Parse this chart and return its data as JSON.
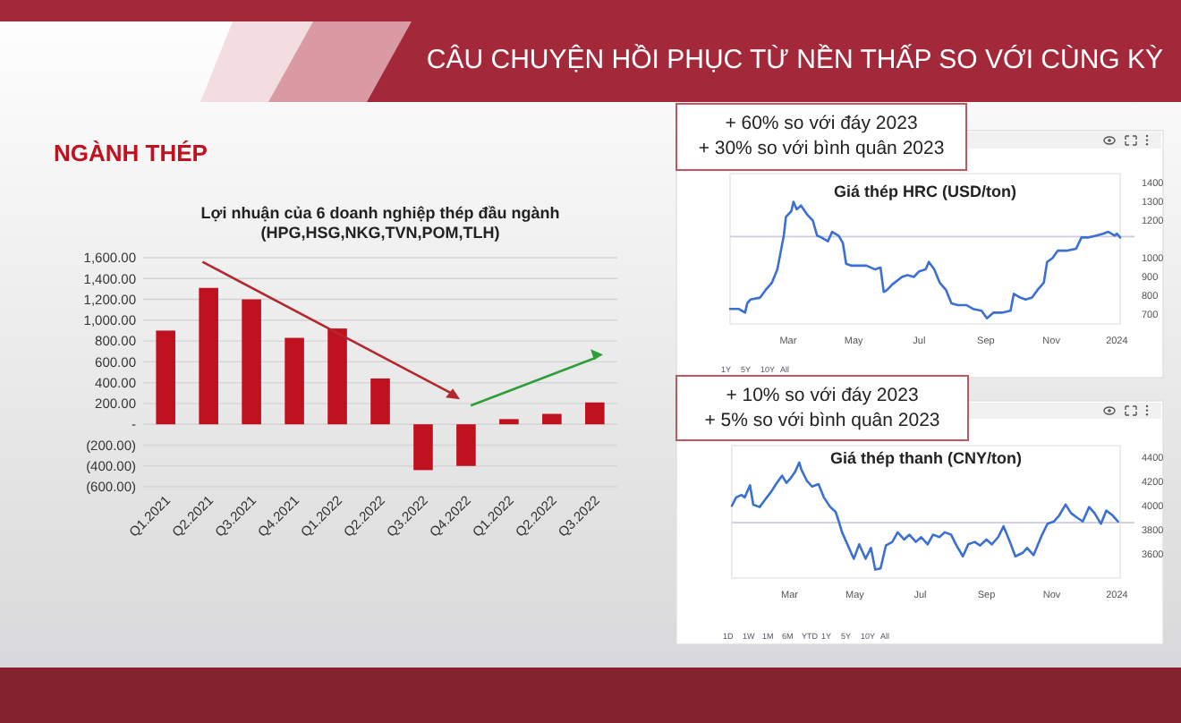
{
  "chart_data": [
    {
      "type": "bar",
      "title": "Lợi nhuận của 6 doanh nghiệp thép đầu ngành\n(HPG,HSG,NKG,TVN,POM,TLH)",
      "annotations": [
        "CÂU CHUYỆN HỒI PHỤC TỪ NỀN THẤP SO VỚI CÙNG KỲ",
        "NGÀNH THÉP"
      ],
      "categories": [
        "Q1.2021",
        "Q2.2021",
        "Q3.2021",
        "Q4.2021",
        "Q1.2022",
        "Q2.2022",
        "Q3.2022",
        "Q4.2022",
        "Q1.2022",
        "Q2.2022",
        "Q3.2022"
      ],
      "values": [
        900,
        1310,
        1200,
        830,
        920,
        440,
        -440,
        -400,
        50,
        100,
        210
      ],
      "color": "#c0111f",
      "ylim": [
        -600,
        1600
      ],
      "yticks": [
        {
          "value": -600,
          "label": "(600.00)"
        },
        {
          "value": -400,
          "label": "(400.00)"
        },
        {
          "value": -200,
          "label": "(200.00)"
        },
        {
          "value": 0,
          "label": "-"
        },
        {
          "value": 200,
          "label": "200.00"
        },
        {
          "value": 400,
          "label": "400.00"
        },
        {
          "value": 600,
          "label": "600.00"
        },
        {
          "value": 800,
          "label": "800.00"
        },
        {
          "value": 1000,
          "label": "1,000.00"
        },
        {
          "value": 1200,
          "label": "1,200.00"
        },
        {
          "value": 1400,
          "label": "1,400.00"
        },
        {
          "value": 1600,
          "label": "1,600.00"
        }
      ],
      "grid": "y"
    },
    {
      "type": "line",
      "title": "Giá thép HRC (USD/ton)",
      "annotations": [
        "+ 60% so với đáy 2023",
        "+ 30% so với bình quân 2023",
        "1Y",
        "5Y",
        "10Y",
        "All"
      ],
      "x": [
        "2023-01-06",
        "2023-01-14",
        "2023-01-20",
        "2023-01-22",
        "2023-01-25",
        "2023-02-03",
        "2023-02-08",
        "2023-02-14",
        "2023-02-19",
        "2023-02-25",
        "2023-02-27",
        "2023-03-04",
        "2023-03-06",
        "2023-03-09",
        "2023-03-13",
        "2023-03-19",
        "2023-03-24",
        "2023-03-28",
        "2023-04-01",
        "2023-04-07",
        "2023-04-11",
        "2023-04-17",
        "2023-04-21",
        "2023-04-24",
        "2023-04-29",
        "2023-05-04",
        "2023-05-13",
        "2023-05-21",
        "2023-05-26",
        "2023-05-29",
        "2023-06-01",
        "2023-06-06",
        "2023-06-15",
        "2023-06-20",
        "2023-06-26",
        "2023-07-01",
        "2023-07-07",
        "2023-07-10",
        "2023-07-15",
        "2023-07-20",
        "2023-07-26",
        "2023-07-31",
        "2023-08-06",
        "2023-08-14",
        "2023-08-20",
        "2023-08-28",
        "2023-09-02",
        "2023-09-08",
        "2023-09-16",
        "2023-09-24",
        "2023-09-27",
        "2023-10-03",
        "2023-10-08",
        "2023-10-14",
        "2023-10-19",
        "2023-10-25",
        "2023-10-28",
        "2023-11-02",
        "2023-11-07",
        "2023-11-16",
        "2023-11-24",
        "2023-11-29",
        "2023-12-05",
        "2023-12-13",
        "2023-12-19",
        "2023-12-24",
        "2023-12-30",
        "2024-01-01",
        "2024-01-04"
      ],
      "series": [
        {
          "color": "#3b6fd0",
          "values": [
            730,
            730,
            710,
            760,
            780,
            790,
            830,
            870,
            940,
            1120,
            1220,
            1250,
            1300,
            1260,
            1280,
            1230,
            1200,
            1120,
            1110,
            1090,
            1140,
            1120,
            1080,
            970,
            960,
            960,
            960,
            940,
            950,
            820,
            830,
            860,
            900,
            910,
            900,
            930,
            940,
            980,
            940,
            870,
            830,
            760,
            750,
            750,
            730,
            720,
            680,
            710,
            710,
            720,
            810,
            790,
            780,
            790,
            830,
            870,
            980,
            1000,
            1040,
            1040,
            1050,
            1110,
            1110,
            1120,
            1130,
            1140,
            1120,
            1130,
            1110
          ]
        }
      ],
      "xlim": [
        "2023-01-06",
        "2024-01-04"
      ],
      "xticks": [
        {
          "value": "2023-03-01",
          "label": "Mar"
        },
        {
          "value": "2023-05-01",
          "label": "May"
        },
        {
          "value": "2023-07-01",
          "label": "Jul"
        },
        {
          "value": "2023-09-01",
          "label": "Sep"
        },
        {
          "value": "2023-11-01",
          "label": "Nov"
        },
        {
          "value": "2024-01-01",
          "label": "2024"
        }
      ],
      "ylim": [
        650,
        1450
      ],
      "yticks": [
        700,
        800,
        900,
        1000,
        1200,
        1300,
        1400
      ],
      "ref_lines": [
        {
          "axis": "y",
          "value": 1115,
          "color": "#c9cbe0"
        }
      ]
    },
    {
      "type": "line",
      "title": "Giá thép thanh (CNY/ton)",
      "annotations": [
        "+ 10% so với đáy 2023",
        "+ 5% so với bình quân 2023",
        "1D",
        "1W",
        "1M",
        "6M",
        "YTD",
        "1Y",
        "5Y",
        "10Y",
        "All"
      ],
      "x": [
        "2023-01-06",
        "2023-01-10",
        "2023-01-15",
        "2023-01-18",
        "2023-01-23",
        "2023-01-26",
        "2023-02-01",
        "2023-02-06",
        "2023-02-12",
        "2023-02-17",
        "2023-02-22",
        "2023-02-26",
        "2023-03-02",
        "2023-03-06",
        "2023-03-10",
        "2023-03-12",
        "2023-03-17",
        "2023-03-22",
        "2023-03-28",
        "2023-04-02",
        "2023-04-08",
        "2023-04-13",
        "2023-04-16",
        "2023-04-19",
        "2023-04-24",
        "2023-04-30",
        "2023-05-05",
        "2023-05-11",
        "2023-05-16",
        "2023-05-20",
        "2023-05-25",
        "2023-05-30",
        "2023-06-05",
        "2023-06-10",
        "2023-06-16",
        "2023-06-21",
        "2023-06-27",
        "2023-07-02",
        "2023-07-08",
        "2023-07-13",
        "2023-07-19",
        "2023-07-24",
        "2023-07-30",
        "2023-08-04",
        "2023-08-10",
        "2023-08-15",
        "2023-08-21",
        "2023-08-26",
        "2023-09-01",
        "2023-09-06",
        "2023-09-12",
        "2023-09-17",
        "2023-09-23",
        "2023-09-28",
        "2023-10-05",
        "2023-10-09",
        "2023-10-15",
        "2023-10-23",
        "2023-10-28",
        "2023-11-03",
        "2023-11-08",
        "2023-11-14",
        "2023-11-19",
        "2023-11-25",
        "2023-11-30",
        "2023-12-06",
        "2023-12-11",
        "2023-12-17",
        "2023-12-22",
        "2023-12-28",
        "2024-01-02"
      ],
      "series": [
        {
          "color": "#3b6fd0",
          "values": [
            4000,
            4070,
            4090,
            4070,
            4170,
            4010,
            3990,
            4050,
            4120,
            4190,
            4250,
            4190,
            4230,
            4280,
            4360,
            4300,
            4210,
            4160,
            4180,
            4070,
            3990,
            3950,
            3870,
            3780,
            3680,
            3560,
            3680,
            3560,
            3650,
            3470,
            3480,
            3670,
            3700,
            3780,
            3720,
            3760,
            3700,
            3740,
            3680,
            3760,
            3740,
            3780,
            3760,
            3670,
            3580,
            3680,
            3700,
            3670,
            3720,
            3680,
            3740,
            3830,
            3700,
            3580,
            3610,
            3650,
            3590,
            3760,
            3850,
            3870,
            3920,
            4010,
            3940,
            3900,
            3870,
            3990,
            3940,
            3850,
            3960,
            3920,
            3870
          ]
        }
      ],
      "xlim": [
        "2023-01-06",
        "2024-01-04"
      ],
      "xticks": [
        {
          "value": "2023-03-01",
          "label": "Mar"
        },
        {
          "value": "2023-05-01",
          "label": "May"
        },
        {
          "value": "2023-07-01",
          "label": "Jul"
        },
        {
          "value": "2023-09-01",
          "label": "Sep"
        },
        {
          "value": "2023-11-01",
          "label": "Nov"
        },
        {
          "value": "2024-01-01",
          "label": "2024"
        }
      ],
      "ylim": [
        3400,
        4500
      ],
      "yticks": [
        3600,
        3800,
        4000,
        4200,
        4400
      ],
      "ref_lines": [
        {
          "axis": "y",
          "value": 3860,
          "color": "#c9cbe0"
        }
      ]
    }
  ]
}
